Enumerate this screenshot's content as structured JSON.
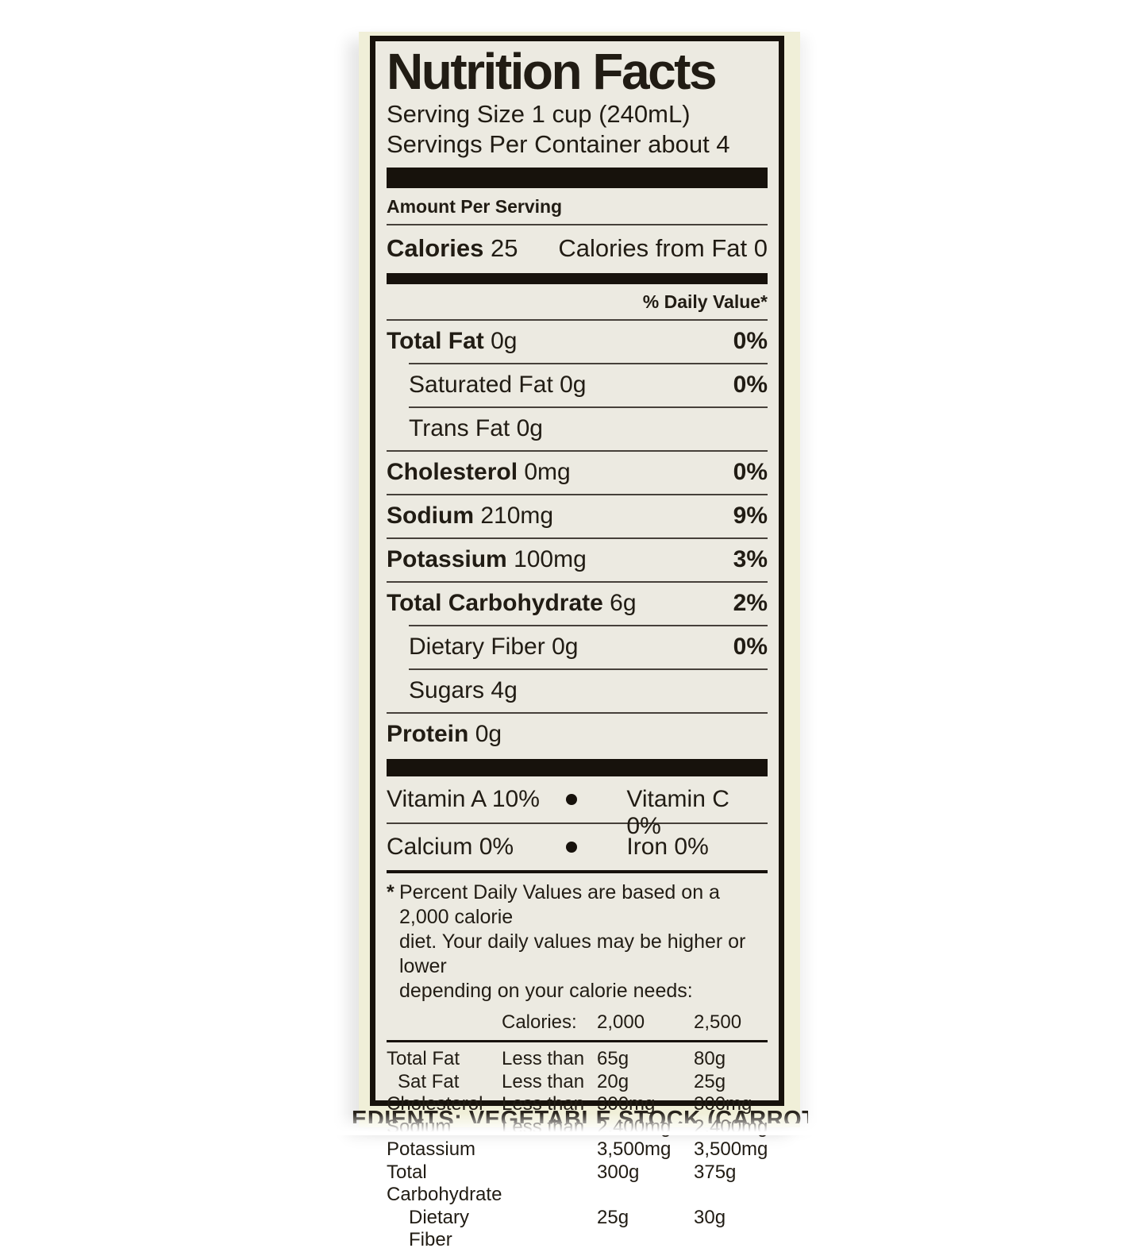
{
  "colors": {
    "label_bg": "#eceae1",
    "carton_bg": "#f0efd8",
    "ink": "#17120c",
    "page_bg": "#ffffff"
  },
  "label": {
    "title": "Nutrition Facts",
    "serving_size": "Serving Size 1 cup (240mL)",
    "servings_per_container": "Servings Per Container about 4",
    "amount_per_serving": "Amount Per Serving",
    "calories_label": "Calories",
    "calories_value": "25",
    "calories_from_fat": "Calories from Fat 0",
    "daily_value_header": "% Daily Value*",
    "nutrients": [
      {
        "name": "Total Fat",
        "amount": "0g",
        "dv": "0%"
      },
      {
        "name": "Saturated Fat",
        "amount": "0g",
        "dv": "0%"
      },
      {
        "name": "Trans Fat",
        "amount": "0g",
        "dv": ""
      },
      {
        "name": "Cholesterol",
        "amount": "0mg",
        "dv": "0%"
      },
      {
        "name": "Sodium",
        "amount": "210mg",
        "dv": "9%"
      },
      {
        "name": "Potassium",
        "amount": "100mg",
        "dv": "3%"
      },
      {
        "name": "Total Carbohydrate",
        "amount": "6g",
        "dv": "2%"
      },
      {
        "name": "Dietary Fiber",
        "amount": "0g",
        "dv": "0%"
      },
      {
        "name": "Sugars",
        "amount": "4g",
        "dv": ""
      },
      {
        "name": "Protein",
        "amount": "0g",
        "dv": ""
      }
    ],
    "vitamins": [
      {
        "left": "Vitamin A 10%",
        "right": "Vitamin C 0%"
      },
      {
        "left": "Calcium 0%",
        "right": "Iron 0%"
      }
    ],
    "footnote_marker": "*",
    "footnote_lines": [
      "Percent Daily Values are based on a 2,000 calorie",
      "diet. Your daily values may be higher or lower",
      "depending on your calorie needs:"
    ],
    "dv_table": {
      "header": {
        "col2": "Calories:",
        "col3": "2,000",
        "col4": "2,500"
      },
      "rows": [
        {
          "name": "Total Fat",
          "qual": "Less than",
          "v2000": "65g",
          "v2500": "80g"
        },
        {
          "name": "Sat Fat",
          "qual": "Less than",
          "v2000": "20g",
          "v2500": "25g"
        },
        {
          "name": "Cholesterol",
          "qual": "Less than",
          "v2000": "300mg",
          "v2500": "300mg"
        },
        {
          "name": "Sodium",
          "qual": "Less than",
          "v2000": "2,400mg",
          "v2500": "2,400mg"
        },
        {
          "name": "Potassium",
          "qual": "",
          "v2000": "3,500mg",
          "v2500": "3,500mg"
        },
        {
          "name": "Total Carbohydrate",
          "qual": "",
          "v2000": "300g",
          "v2500": "375g"
        },
        {
          "name": "Dietary Fiber",
          "qual": "",
          "v2000": "25g",
          "v2500": "30g"
        }
      ]
    },
    "ingredients_clipped": "EDIENTS: VEGETABLE STOCK (CARROT, MUSHRO"
  }
}
